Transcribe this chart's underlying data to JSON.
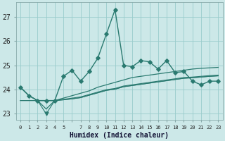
{
  "xlabel": "Humidex (Indice chaleur)",
  "background_color": "#cce8e8",
  "grid_color": "#99cccc",
  "line_color": "#2a7a70",
  "xlim": [
    -0.5,
    23.5
  ],
  "ylim": [
    22.75,
    27.6
  ],
  "yticks": [
    23,
    24,
    25,
    26,
    27
  ],
  "xticks": [
    0,
    1,
    2,
    3,
    4,
    5,
    6,
    7,
    8,
    9,
    10,
    11,
    12,
    13,
    14,
    15,
    16,
    17,
    18,
    19,
    20,
    21,
    22,
    23
  ],
  "xtick_labels": [
    "0",
    "1",
    "2",
    "3",
    "4",
    "5",
    "",
    "7",
    "8",
    "9",
    "10",
    "11",
    "12",
    "13",
    "14",
    "15",
    "16",
    "17",
    "18",
    "19",
    "20",
    "21",
    "22",
    "23"
  ],
  "main_series": [
    24.1,
    23.75,
    23.55,
    23.55,
    23.55,
    24.55,
    24.8,
    24.35,
    24.75,
    25.3,
    26.3,
    27.3,
    25.0,
    24.95,
    25.2,
    25.15,
    24.85,
    25.2,
    24.7,
    24.75,
    24.35,
    24.2,
    24.35,
    24.35
  ],
  "line2": [
    24.1,
    23.75,
    23.55,
    23.2,
    23.55,
    23.65,
    23.75,
    23.85,
    23.95,
    24.1,
    24.2,
    24.3,
    24.4,
    24.5,
    24.55,
    24.6,
    24.65,
    24.7,
    24.75,
    24.8,
    24.85,
    24.88,
    24.9,
    24.92
  ],
  "line3": [
    23.55,
    23.55,
    23.55,
    23.55,
    23.55,
    23.6,
    23.65,
    23.7,
    23.8,
    23.9,
    24.0,
    24.05,
    24.15,
    24.2,
    24.25,
    24.3,
    24.35,
    24.4,
    24.45,
    24.5,
    24.52,
    24.55,
    24.58,
    24.6
  ],
  "line4": [
    23.55,
    23.55,
    23.55,
    23.55,
    23.55,
    23.58,
    23.62,
    23.67,
    23.77,
    23.87,
    23.97,
    24.02,
    24.12,
    24.17,
    24.22,
    24.27,
    24.32,
    24.37,
    24.42,
    24.47,
    24.49,
    24.52,
    24.55,
    24.57
  ],
  "line5_inv": [
    24.1,
    23.75,
    23.55,
    23.0,
    23.55,
    23.58,
    23.62,
    23.67,
    23.77,
    23.87,
    23.97,
    24.02,
    24.12,
    24.17,
    24.22,
    24.27,
    24.32,
    24.37,
    24.42,
    24.47,
    24.49,
    24.52,
    24.55,
    24.57
  ]
}
